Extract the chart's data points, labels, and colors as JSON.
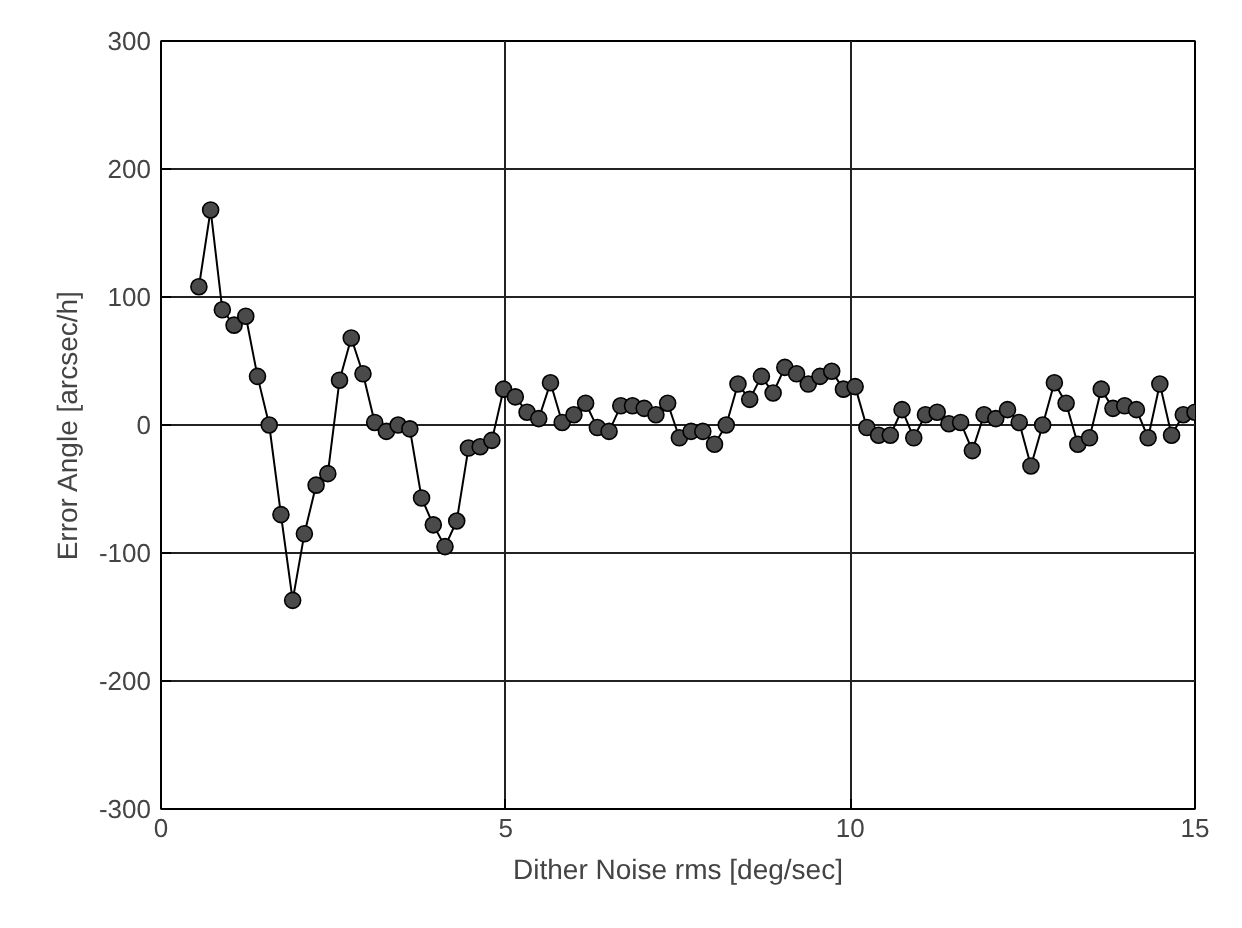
{
  "chart_data": {
    "type": "line",
    "xlabel": "Dither Noise rms [deg/sec]",
    "ylabel": "Error Angle [arcsec/h]",
    "xlim": [
      0,
      15
    ],
    "xticks": [
      0,
      5,
      10,
      15
    ],
    "ylim": [
      -300,
      300
    ],
    "yticks": [
      -300,
      -200,
      -100,
      0,
      100,
      200,
      300
    ],
    "grid": true,
    "marker": "circle",
    "line_style": "solid",
    "x": [
      0.55,
      0.72,
      0.89,
      1.06,
      1.23,
      1.4,
      1.57,
      1.74,
      1.91,
      2.08,
      2.25,
      2.42,
      2.59,
      2.76,
      2.93,
      3.1,
      3.27,
      3.44,
      3.61,
      3.78,
      3.95,
      4.12,
      4.29,
      4.46,
      4.63,
      4.8,
      4.97,
      5.14,
      5.31,
      5.48,
      5.65,
      5.82,
      5.99,
      6.16,
      6.33,
      6.5,
      6.67,
      6.84,
      7.01,
      7.18,
      7.35,
      7.52,
      7.69,
      7.86,
      8.03,
      8.2,
      8.37,
      8.54,
      8.71,
      8.88,
      9.05,
      9.22,
      9.39,
      9.56,
      9.73,
      9.9,
      10.07,
      10.24,
      10.41,
      10.58,
      10.75,
      10.92,
      11.09,
      11.26,
      11.43,
      11.6,
      11.77,
      11.94,
      12.11,
      12.28,
      12.45,
      12.62,
      12.79,
      12.96,
      13.13,
      13.3,
      13.47,
      13.64,
      13.81,
      13.98,
      14.15,
      14.32,
      14.49,
      14.66,
      14.83,
      15.0
    ],
    "series": [
      {
        "color": "#4a4a4a",
        "values": [
          108,
          168,
          90,
          78,
          85,
          38,
          0,
          -70,
          -137,
          -85,
          -47,
          -38,
          35,
          68,
          40,
          2,
          -5,
          0,
          -3,
          -57,
          -78,
          -95,
          -75,
          -18,
          -17,
          -12,
          28,
          22,
          10,
          5,
          33,
          2,
          8,
          17,
          -2,
          -5,
          15,
          15,
          13,
          8,
          17,
          -10,
          -5,
          -5,
          -15,
          0,
          32,
          20,
          38,
          25,
          45,
          40,
          32,
          38,
          42,
          28,
          30,
          -2,
          -8,
          -8,
          12,
          -10,
          8,
          10,
          1,
          2,
          -20,
          8,
          5,
          12,
          2,
          -32,
          0,
          33,
          17,
          -15,
          -10,
          28,
          13,
          15,
          12,
          -10,
          32,
          -8,
          8,
          10
        ]
      }
    ]
  }
}
